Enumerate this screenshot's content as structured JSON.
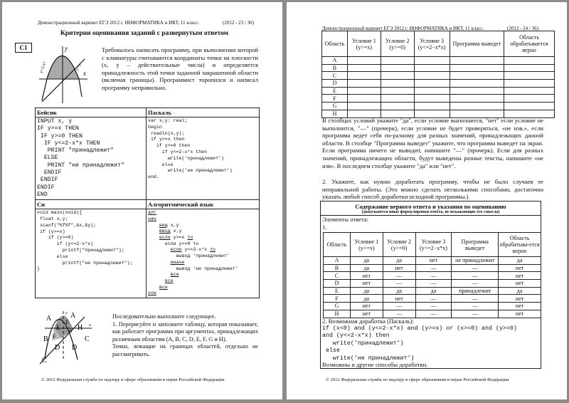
{
  "page1": {
    "header": "Демонстрационный вариант ЕГЭ 2012 г. ИНФОРМАТИКА и ИКТ, 11 класс.",
    "page_no": "(2012 - 23 / 36)",
    "title": "Критерии оценивания заданий с развернутым ответом",
    "task_id": "C1",
    "graph1": {
      "y": "y",
      "x": "x",
      "curve": "y=2-x²",
      "line": "y=x"
    },
    "intro": "Требовалось написать программу, при выполнении которой с клавиатуры считываются координаты точки на плоскости (x, y – действительные числа) и определяется принадлежность этой точки заданной закрашенной области (включая границы). Программист торопился и написал программу неправильно.",
    "code": {
      "basic_label": "Бейсик",
      "basic": "INPUT x, y\nIF y>=x THEN\n IF y>=0 THEN\n  IF y<=2-x*x THEN\n   PRINT \"принадлежит\"\n  ELSE\n   PRINT \"не принадлежит\"\n  ENDIF\n ENDIF\nENDIF\nEND",
      "pascal_label": "Паскаль",
      "pascal": "var x,y: real;\nbegin\n readln(x,y);\n if y>=x then\n   if y>=0 then\n     if y<=2-x*x then\n       write('принадлежит')\n     else\n       write('не принадлежит')\nend.",
      "c_label": "Си",
      "c": "void main(void){\n float x,y;\n scanf(\"%f%f\",&x,&y);\n if (y>=x)\n    if (y>=0)\n       if (y<=2-x*x)\n         printf(\"принадлежит\");\n       else\n         printf(\"не принадлежит\");\n}",
      "alg_label": "Алгоритмический язык",
      "alg": [
        "алг",
        "нач",
        "    вещ x,y",
        "    ввод x,y",
        "    если y>=x то",
        "      если y>=0 то",
        "        если y<=2-x*x то",
        "          вывод 'принадлежит'",
        "        иначе",
        "          вывод 'не принадлежит'",
        "        все",
        "      все",
        "    все",
        "кон"
      ]
    },
    "graph2": {
      "y": "y",
      "x": "x",
      "curve": "y=2-x²",
      "line": "y=x",
      "regions": [
        "A",
        "A",
        "B",
        "C",
        "C",
        "D",
        "D",
        "E",
        "E",
        "F",
        "G",
        "H"
      ]
    },
    "task_text": "Последовательно выполните следующее.",
    "task_1": "1. Перерисуйте и заполните таблицу, которая показывает, как работает программа при аргументах, принадлежащих различным областям (A, B, C, D, E, F, G и H).",
    "task_note": "Точки, лежащие на границах областей, отдельно не рассматривать.",
    "footer": "© 2012 Федеральная служба по надзору в сфере образования и науки Российской Федерации"
  },
  "page2": {
    "header": "Демонстрационный вариант ЕГЭ 2012 г. ИНФОРМАТИКА и ИКТ, 11 класс.",
    "page_no": "(2012 - 24 / 36)",
    "table_headers": [
      "Область",
      "Условие 1 (y>=x)",
      "Условие 2 (y>=0)",
      "Условие 3 (y<=2−x*x)",
      "Программа выведет",
      "Область обрабатывается верно"
    ],
    "regions": [
      "A",
      "B",
      "C",
      "D",
      "E",
      "F",
      "G",
      "H"
    ],
    "instructions": "В столбцах условий укажите \"да\", если условие выполнится, \"нет\" если условие не выполнится, \"—\" (прочерк), если условие не будет проверяться, «не изв.», если программа ведет себя по-разному для разных значений, принадлежащих данной области. В столбце \"Программа выведет\" укажите, что программа выведет на экран. Если программа ничего не выводит, напишите \"—\" (прочерк). Если для разных значений, принадлежащих области, будут выведены разные тексты, напишите «не изв». В последнем столбце укажите \"да\" или \"нет\".",
    "task_2": "2. Укажите, как нужно доработать программу, чтобы не было случаев ее неправильной работы. (Это можно сделать несколькими способами, достаточно указать любой способ доработки исходной программы.)",
    "answer": {
      "title": "Содержание верного ответа и указания по оцениванию",
      "subtitle": "(допускаются иные формулировки ответа, не искажающие его смысла)",
      "elements": "Элементы ответа:",
      "item1": "1.",
      "headers": [
        "Область",
        "Условие 1 (y>=x)",
        "Условие 2 (y>=0)",
        "Условие 3 (y<=2−x*x)",
        "Программа выведет",
        "Область обрабатыва-ется верно"
      ],
      "rows": [
        [
          "A",
          "да",
          "да",
          "нет",
          "не принадлежит",
          "да"
        ],
        [
          "B",
          "да",
          "нет",
          "—",
          "—",
          "нет"
        ],
        [
          "C",
          "нет",
          "—",
          "—",
          "—",
          "нет"
        ],
        [
          "D",
          "нет",
          "—",
          "—",
          "—",
          "нет"
        ],
        [
          "E",
          "да",
          "да",
          "да",
          "принадлежит",
          "да"
        ],
        [
          "F",
          "да",
          "нет",
          "—",
          "—",
          "нет"
        ],
        [
          "G",
          "нет",
          "—",
          "—",
          "—",
          "нет"
        ],
        [
          "H",
          "нет",
          "—",
          "—",
          "—",
          "нет"
        ]
      ],
      "item2": "2. Возможная доработка (Паскаль):",
      "fix_code": "if (x<0) and (y<=2-x*x) and (y>=x) or (x>=0) and (y>=0)\nand (y<=2-x*x) then\n   write('принадлежит')\n else\n   write('не принадлежит')",
      "closing": "Возможны и другие способы доработки."
    },
    "footer": "© 2012 Федеральная служба по надзору в сфере образования и науки Российской Федерации"
  }
}
